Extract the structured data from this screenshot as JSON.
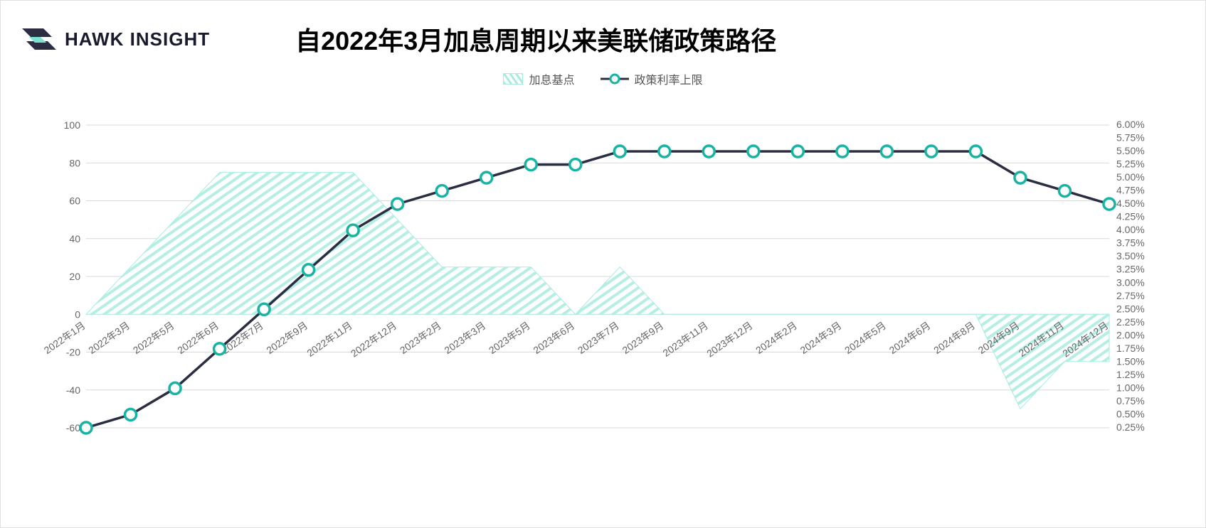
{
  "brand": {
    "name": "HAWK INSIGHT"
  },
  "title": "自2022年3月加息周期以来美联储政策路径",
  "legend": {
    "area_label": "加息基点",
    "line_label": "政策利率上限"
  },
  "chart": {
    "type": "combo-area-line",
    "background_color": "#ffffff",
    "grid_color": "#d9d9d9",
    "grid_on": true,
    "axis_color": "#bfbfbf",
    "left_axis": {
      "label": "",
      "min": -60,
      "max": 100,
      "tick_step": 20,
      "ticks": [
        -60,
        -40,
        -20,
        0,
        20,
        40,
        60,
        80,
        100
      ],
      "fontsize": 14,
      "font_color": "#666666"
    },
    "right_axis": {
      "label": "",
      "min": 0.25,
      "max": 6.0,
      "tick_step": 0.25,
      "ticks": [
        0.25,
        0.5,
        0.75,
        1.0,
        1.25,
        1.5,
        1.75,
        2.0,
        2.25,
        2.5,
        2.75,
        3.0,
        3.25,
        3.5,
        3.75,
        4.0,
        4.25,
        4.5,
        4.75,
        5.0,
        5.25,
        5.5,
        5.75,
        6.0
      ],
      "tick_labels": [
        "0.25%",
        "0.50%",
        "0.75%",
        "1.00%",
        "1.25%",
        "1.50%",
        "1.75%",
        "2.00%",
        "2.25%",
        "2.50%",
        "2.75%",
        "3.00%",
        "3.25%",
        "3.50%",
        "3.75%",
        "4.00%",
        "4.25%",
        "4.50%",
        "4.75%",
        "5.00%",
        "5.25%",
        "5.50%",
        "5.75%",
        "6.00%"
      ],
      "fontsize": 14,
      "font_color": "#666666"
    },
    "categories": [
      "2022年1月",
      "2022年3月",
      "2022年5月",
      "2022年6月",
      "2022年7月",
      "2022年9月",
      "2022年11月",
      "2022年12月",
      "2023年2月",
      "2023年3月",
      "2023年5月",
      "2023年6月",
      "2023年7月",
      "2023年9月",
      "2023年11月",
      "2023年12月",
      "2024年2月",
      "2024年3月",
      "2024年5月",
      "2024年6月",
      "2024年8月",
      "2024年9月",
      "2024年11月",
      "2024年12月"
    ],
    "area_series": {
      "name": "加息基点",
      "axis": "left",
      "values": [
        0,
        25,
        50,
        75,
        75,
        75,
        75,
        50,
        25,
        25,
        25,
        0,
        25,
        0,
        0,
        0,
        0,
        0,
        0,
        0,
        0,
        -50,
        -25,
        -25
      ],
      "fill_pattern": "hatch",
      "fill_color": "#a8ece0",
      "fill_opacity": 0.85,
      "stroke_color": "#a8ece0",
      "stroke_width": 1
    },
    "line_series": {
      "name": "政策利率上限",
      "axis": "right",
      "values": [
        0.25,
        0.5,
        1.0,
        1.75,
        2.5,
        3.25,
        4.0,
        4.5,
        4.75,
        5.0,
        5.25,
        5.25,
        5.5,
        5.5,
        5.5,
        5.5,
        5.5,
        5.5,
        5.5,
        5.5,
        5.5,
        5.0,
        4.75,
        4.5
      ],
      "stroke_color": "#2b2d42",
      "stroke_width": 3.5,
      "marker": {
        "shape": "circle",
        "radius": 8,
        "fill": "#ffffff",
        "stroke": "#17b3a3",
        "stroke_width": 3.5
      }
    },
    "x_label_rotation": -35,
    "x_label_fontsize": 14,
    "title_fontsize": 36,
    "legend_fontsize": 16,
    "aspect_w": 1695,
    "aspect_h": 743
  },
  "logo": {
    "dark": "#2b2d42",
    "accent": "#7de3d0"
  }
}
